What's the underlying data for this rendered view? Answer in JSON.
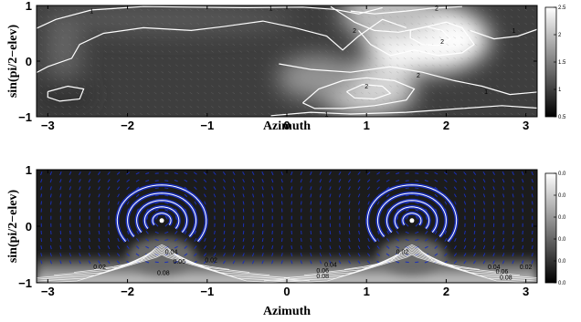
{
  "chart_data": [
    {
      "type": "heatmap",
      "panel": "top",
      "title": "",
      "xlabel": "Azimuth",
      "ylabel": "sin(pi/2−elev)",
      "xlim": [
        -3.14159,
        3.14159
      ],
      "ylim": [
        -1,
        1
      ],
      "x_ticks": [
        -3,
        -2,
        -1,
        0,
        1,
        2,
        3
      ],
      "x_tick_labels": [
        "−3",
        "−2",
        "−1",
        "0",
        "1",
        "2",
        "3"
      ],
      "y_ticks": [
        -1,
        0,
        1
      ],
      "y_tick_labels": [
        "−1",
        "0",
        "1"
      ],
      "colormap": "gray",
      "colorbar": {
        "range": [
          0.5,
          2.5
        ],
        "ticks": [
          0.5,
          1,
          1.5,
          2,
          2.5
        ],
        "tick_labels": [
          "0.5",
          "1",
          "1.5",
          "2",
          "2.5"
        ]
      },
      "contour_line_color": "#ffffff",
      "contour_labels": [
        {
          "text": "1",
          "x": -2.45,
          "y": 0.9
        },
        {
          "text": "1",
          "x": -0.2,
          "y": 0.95
        },
        {
          "text": "2",
          "x": 1.88,
          "y": 0.95
        },
        {
          "text": "2",
          "x": 0.85,
          "y": 0.55
        },
        {
          "text": "2",
          "x": 1.95,
          "y": 0.35
        },
        {
          "text": "1",
          "x": 2.85,
          "y": 0.55
        },
        {
          "text": "2",
          "x": 1.65,
          "y": -0.25
        },
        {
          "text": "2",
          "x": 1.0,
          "y": -0.45
        },
        {
          "text": "1",
          "x": 2.5,
          "y": -0.55
        },
        {
          "text": "1",
          "x": 0.5,
          "y": -0.95
        }
      ],
      "hotspots": [
        {
          "x": 1.75,
          "y": 0.4,
          "value": 2.5
        },
        {
          "x": 1.0,
          "y": -0.5,
          "value": 2.1
        },
        {
          "x": 1.3,
          "y": 0.85,
          "value": 1.9
        },
        {
          "x": 0.4,
          "y": -0.3,
          "value": 1.5
        },
        {
          "x": -2.8,
          "y": -0.6,
          "value": 0.6
        }
      ]
    },
    {
      "type": "heatmap",
      "panel": "bottom",
      "title": "",
      "xlabel": "Azimuth",
      "ylabel": "sin(pi/2−elev)",
      "xlim": [
        -3.14159,
        3.14159
      ],
      "ylim": [
        -1,
        1
      ],
      "x_ticks": [
        -3,
        -2,
        -1,
        0,
        1,
        2,
        3
      ],
      "x_tick_labels": [
        "−3",
        "−2",
        "−1",
        "0",
        "1",
        "2",
        "3"
      ],
      "y_ticks": [
        -1,
        0,
        1
      ],
      "y_tick_labels": [
        "−1",
        "0",
        "1"
      ],
      "colormap": "gray",
      "colorbar": {
        "range": [
          0.0,
          0.1
        ],
        "ticks": [
          0.0,
          0.02,
          0.04,
          0.06,
          0.08,
          0.1
        ],
        "tick_labels": [
          "0.0",
          "0.0",
          "0.0",
          "0.0",
          "0.0",
          "0.0"
        ]
      },
      "quiver_color": "#1a2fb8",
      "contour_line_color": "#ffffff",
      "sources": [
        {
          "x": -1.57,
          "y": 0.1
        },
        {
          "x": 1.57,
          "y": 0.1
        }
      ],
      "contour_labels": [
        {
          "text": "0.02",
          "x": -2.35,
          "y": -0.72
        },
        {
          "text": "0.04",
          "x": -1.45,
          "y": -0.45
        },
        {
          "text": "0.06",
          "x": -1.35,
          "y": -0.62
        },
        {
          "text": "0.08",
          "x": -1.55,
          "y": -0.82
        },
        {
          "text": "0.02",
          "x": -0.95,
          "y": -0.6
        },
        {
          "text": "0.04",
          "x": 0.55,
          "y": -0.68
        },
        {
          "text": "0.06",
          "x": 0.45,
          "y": -0.78
        },
        {
          "text": "0.08",
          "x": 0.45,
          "y": -0.88
        },
        {
          "text": "0.02",
          "x": 1.45,
          "y": -0.45
        },
        {
          "text": "0.04",
          "x": 2.6,
          "y": -0.72
        },
        {
          "text": "0.06",
          "x": 2.7,
          "y": -0.8
        },
        {
          "text": "0.08",
          "x": 2.75,
          "y": -0.9
        },
        {
          "text": "0.02",
          "x": 3.0,
          "y": -0.72
        }
      ]
    }
  ]
}
